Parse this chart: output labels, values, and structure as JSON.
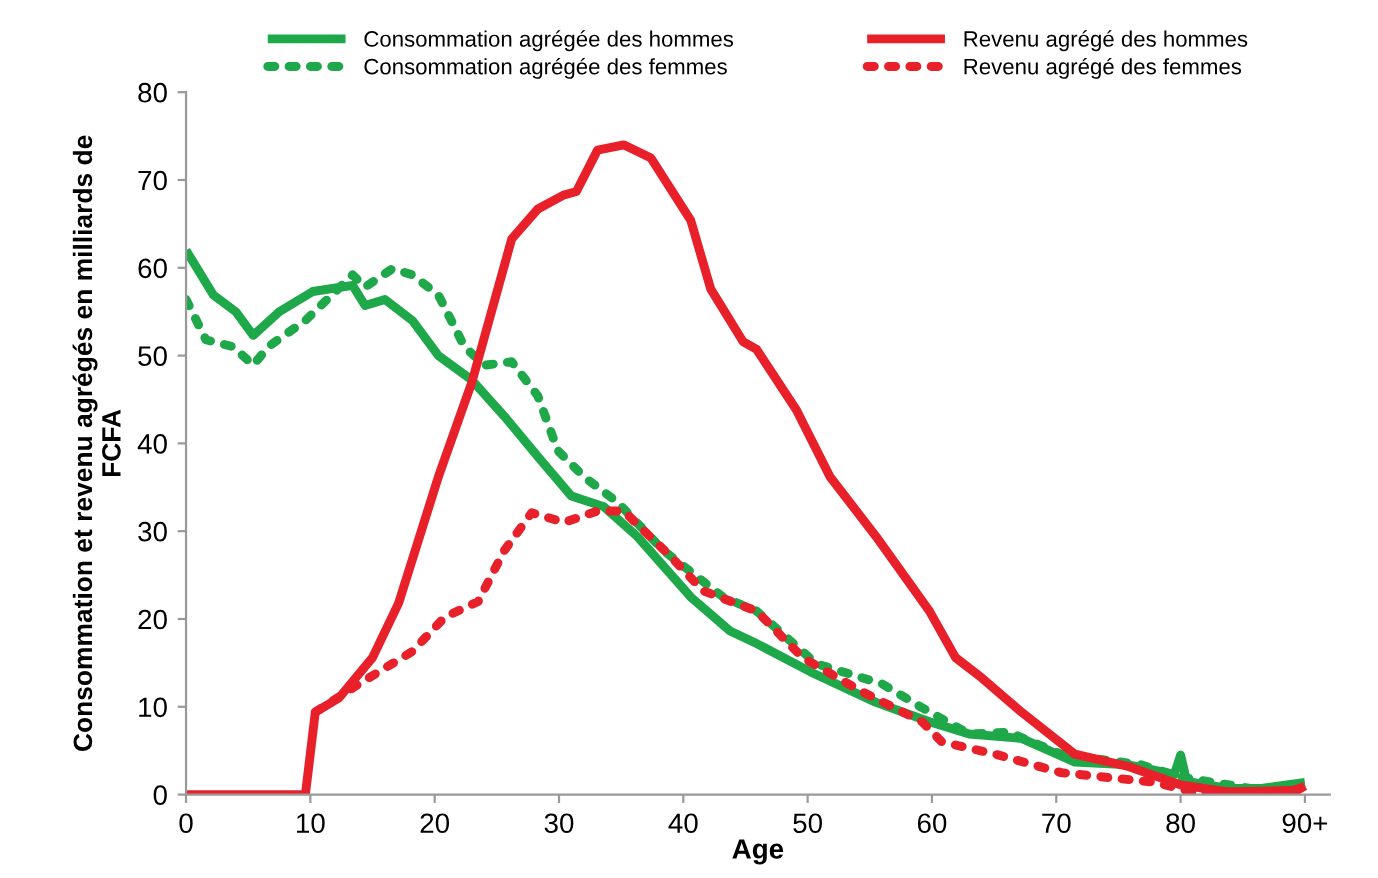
{
  "chart_data": {
    "type": "line",
    "xlabel": "Age",
    "ylabel": "Consommation et revenu agrégés en milliards de\nFCFA",
    "xlim": [
      0,
      92
    ],
    "xticks": [
      0,
      10,
      20,
      30,
      40,
      50,
      60,
      70,
      80,
      {
        "value": 90,
        "label": "90+"
      }
    ],
    "ylim": [
      0,
      80
    ],
    "yticks": [
      0,
      10,
      20,
      30,
      40,
      50,
      60,
      70,
      80
    ],
    "grid": false,
    "legend": "top",
    "series": [
      {
        "name": "Consommation agrégée des hommes",
        "color": "#1fa84a",
        "line_style": "solid",
        "x": [
          0,
          2.2,
          4,
          5.4,
          7.5,
          10.2,
          13.4,
          14.4,
          16,
          18.2,
          20.3,
          23,
          25.6,
          28.3,
          31,
          33.6,
          36.3,
          40.6,
          43.8,
          45.9,
          50.2,
          55.5,
          59.8,
          63,
          67.2,
          71.5,
          75.8,
          79.5,
          80,
          80.5,
          83.8,
          86.5,
          90
        ],
        "values": [
          62,
          56.9,
          55,
          52.3,
          55,
          57.3,
          58,
          55.7,
          56.4,
          54,
          50,
          47.2,
          43.1,
          38.5,
          34,
          32.8,
          29.4,
          22.5,
          18.6,
          17.2,
          14,
          10.5,
          8.3,
          6.9,
          6.4,
          3.7,
          3.4,
          2.3,
          4.5,
          1.5,
          0.7,
          0.7,
          1.4
        ]
      },
      {
        "name": "Consommation agrégée des femmes",
        "color": "#1fa84a",
        "line_style": "dotted",
        "x": [
          0,
          1.6,
          3.8,
          5.4,
          6.6,
          9.6,
          13.4,
          14.4,
          16.6,
          18.2,
          20.3,
          22.4,
          24,
          26.2,
          28.3,
          29.9,
          32,
          34.7,
          38.4,
          43.2,
          45.9,
          50.7,
          56,
          59.2,
          63,
          66.2,
          70.4,
          76.8,
          80,
          86.5,
          90
        ],
        "values": [
          56.4,
          51.8,
          51,
          48.9,
          51,
          54,
          59.2,
          57.8,
          59.9,
          59.2,
          56.9,
          51,
          48.9,
          49.3,
          45.4,
          39.2,
          36.2,
          33.3,
          27.8,
          22.5,
          20.9,
          14.9,
          12.6,
          9.9,
          6.9,
          7.1,
          4.6,
          3.4,
          2,
          0.5,
          1.1
        ]
      },
      {
        "name": "Revenu agrégé des hommes",
        "color": "#e8202a",
        "line_style": "solid",
        "x": [
          0,
          9.6,
          10.4,
          12.3,
          15,
          17.1,
          20.3,
          23,
          26.2,
          28.3,
          30.4,
          31.4,
          33.1,
          35.2,
          37.4,
          40.6,
          42.2,
          44.8,
          45.9,
          49.1,
          51.8,
          55.5,
          59.8,
          61.9,
          64,
          67.2,
          71.5,
          75.8,
          80,
          83.8,
          89.4,
          90
        ],
        "values": [
          0,
          0,
          9.4,
          11,
          15.6,
          21.8,
          36.2,
          47,
          63.3,
          66.7,
          68.3,
          68.7,
          73.4,
          74,
          72.5,
          65.4,
          57.6,
          51.6,
          50.7,
          43.8,
          36.2,
          29.4,
          20.9,
          15.6,
          13.3,
          9.4,
          4.6,
          3.2,
          1.1,
          0.3,
          0.5,
          1
        ]
      },
      {
        "name": "Revenu agrégé des femmes",
        "color": "#e8202a",
        "line_style": "dotted",
        "x": [
          10.4,
          13.9,
          18.2,
          20.8,
          23.5,
          25.6,
          27.8,
          30.4,
          33.1,
          35.2,
          39,
          41.6,
          45.9,
          49.6,
          54.4,
          59.2,
          60.8,
          65.1,
          70.4,
          77.9,
          81,
          88.6,
          90
        ],
        "values": [
          9.4,
          12.6,
          16.3,
          20.2,
          22,
          27.8,
          32.1,
          31,
          32.3,
          32.3,
          27.1,
          23.2,
          20.9,
          15.6,
          11.7,
          8.3,
          6,
          4.6,
          2.5,
          1.4,
          0.3,
          0.3,
          0.9
        ]
      }
    ]
  }
}
